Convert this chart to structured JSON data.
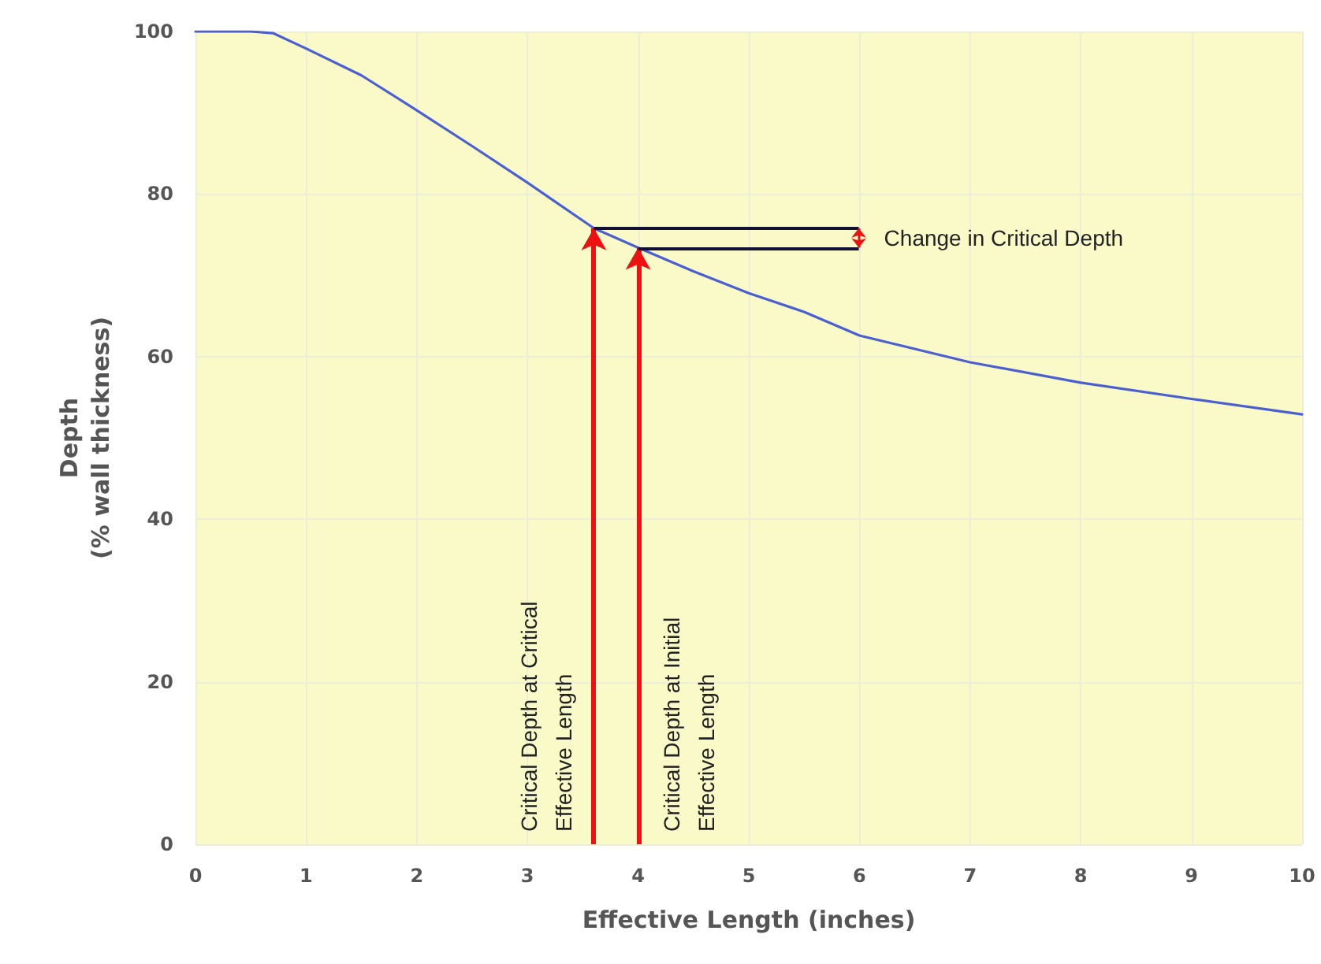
{
  "chart_data": {
    "type": "line",
    "xlabel": "Effective Length (inches)",
    "ylabel": "Depth\n(% wall thickness)",
    "x": [
      0,
      0.5,
      0.7,
      1,
      1.5,
      2,
      2.5,
      3,
      3.6,
      4,
      4.5,
      5,
      5.5,
      6,
      7,
      8,
      9,
      10
    ],
    "series": [
      {
        "color": "#4a5fd0",
        "values": [
          100,
          100,
          99.8,
          97.9,
          94.6,
          90.3,
          85.9,
          81.4,
          75.8,
          73.4,
          70.5,
          67.8,
          65.5,
          62.6,
          59.3,
          56.8,
          54.8,
          52.9
        ]
      }
    ],
    "xlim": [
      0,
      10
    ],
    "xticks": [
      0,
      1,
      2,
      3,
      4,
      5,
      6,
      7,
      8,
      9,
      10
    ],
    "ylim": [
      0,
      100
    ],
    "yticks": [
      0,
      20,
      40,
      60,
      80,
      100
    ],
    "grid": true,
    "marker": "none",
    "line_style": "solid",
    "ref_lines": [
      {
        "axis": "x",
        "value": 3.6,
        "label": "Critical Depth at Critical Effective Length",
        "color": "#ee1111"
      },
      {
        "axis": "x",
        "value": 4,
        "label": "Critical Depth at Initial Effective Length",
        "color": "#ee1111"
      }
    ],
    "annotations": [
      "Change in Critical Depth"
    ]
  }
}
